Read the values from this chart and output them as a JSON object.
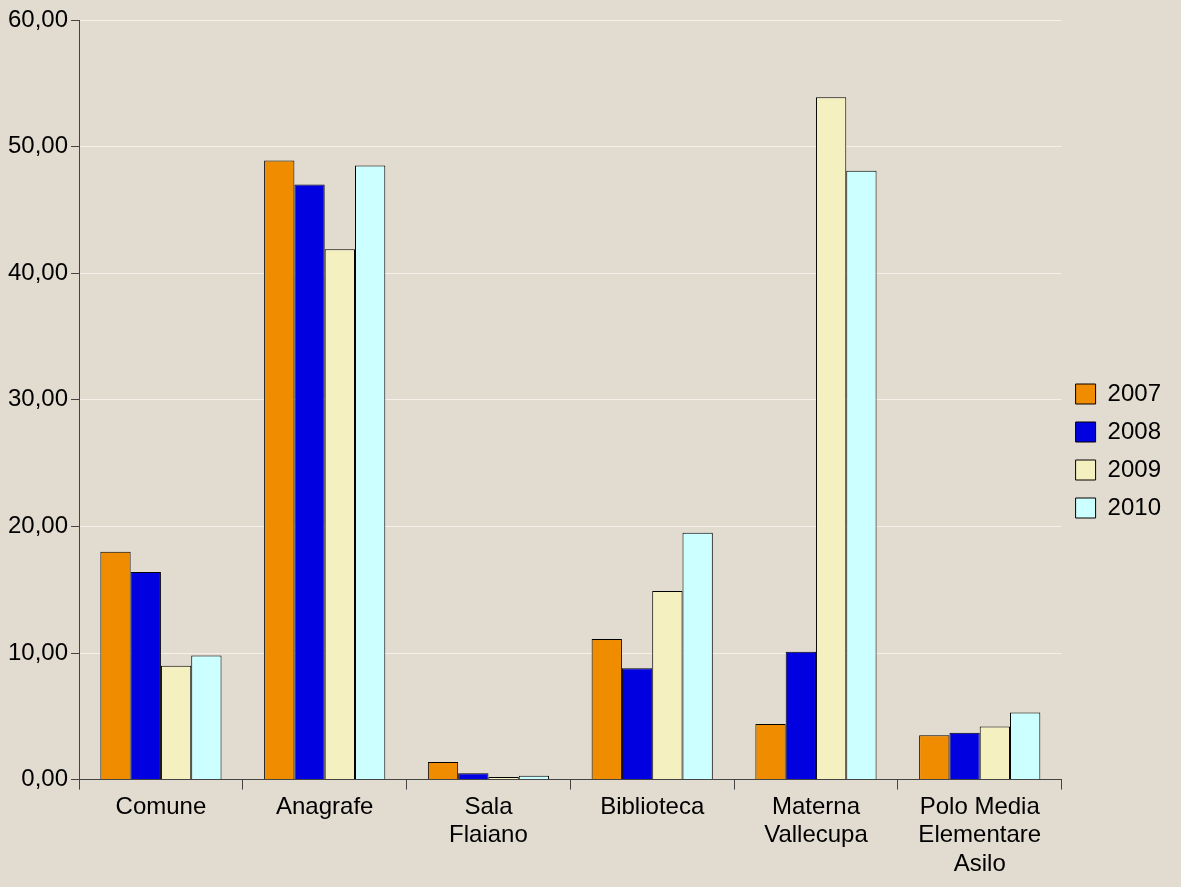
{
  "chart_data": {
    "type": "bar",
    "categories": [
      "Comune",
      "Anagrafe",
      "Sala Flaiano",
      "Biblioteca",
      "Materna Vallecupa",
      "Polo Media Elementare Asilo"
    ],
    "series": [
      {
        "name": "2007",
        "color": "#f08c00",
        "values": [
          18.0,
          48.9,
          1.4,
          11.1,
          4.4,
          3.5
        ]
      },
      {
        "name": "2008",
        "color": "#0000e0",
        "values": [
          16.4,
          47.0,
          0.5,
          8.8,
          10.1,
          3.7
        ]
      },
      {
        "name": "2009",
        "color": "#f5f0c0",
        "values": [
          9.0,
          41.9,
          0.2,
          14.9,
          53.9,
          4.2
        ]
      },
      {
        "name": "2010",
        "color": "#ccffff",
        "values": [
          9.8,
          48.5,
          0.3,
          19.5,
          48.1,
          5.3
        ]
      }
    ],
    "ylim": [
      0,
      60
    ],
    "yticks": [
      {
        "value": 0,
        "label": "0,00"
      },
      {
        "value": 10,
        "label": "10,00"
      },
      {
        "value": 20,
        "label": "20,00"
      },
      {
        "value": 30,
        "label": "30,00"
      },
      {
        "value": 40,
        "label": "40,00"
      },
      {
        "value": 50,
        "label": "50,00"
      },
      {
        "value": 60,
        "label": "60,00"
      }
    ],
    "grid": "y",
    "legend": "right"
  }
}
